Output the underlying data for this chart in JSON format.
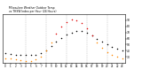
{
  "title": "Milwaukee Weather Outdoor Temp\nvs THSW Index per Hour (24 Hours)",
  "hours": [
    0,
    1,
    2,
    3,
    4,
    5,
    6,
    7,
    8,
    9,
    10,
    11,
    12,
    13,
    14,
    15,
    16,
    17,
    18,
    19,
    20,
    21,
    22,
    23
  ],
  "temp": [
    36,
    35,
    34,
    33,
    33,
    33,
    34,
    36,
    41,
    48,
    55,
    61,
    66,
    70,
    72,
    72,
    70,
    65,
    60,
    55,
    50,
    46,
    43,
    40
  ],
  "thsw": [
    28,
    27,
    26,
    25,
    24,
    24,
    26,
    30,
    40,
    54,
    68,
    79,
    87,
    91,
    90,
    85,
    77,
    65,
    54,
    45,
    38,
    34,
    30,
    27
  ],
  "temp_color": "#000000",
  "thsw_color_low": "#ff8800",
  "thsw_color_high": "#dd0000",
  "thsw_threshold": 58,
  "bg_color": "#ffffff",
  "grid_color": "#999999",
  "ylim": [
    20,
    100
  ],
  "yticks": [
    30,
    40,
    50,
    60,
    70,
    80,
    90
  ],
  "vgrid_positions": [
    4,
    8,
    12,
    16,
    20
  ],
  "dot_size": 1.2
}
